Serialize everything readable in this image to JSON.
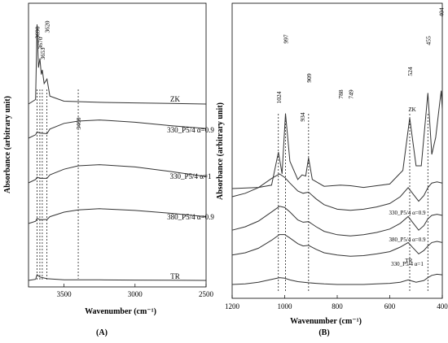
{
  "chart_data": [
    {
      "type": "line",
      "panel_label": "(A)",
      "xlabel": "Wavenumber (cm⁻¹)",
      "ylabel": "Absorbance (arbitrary unit)",
      "x_reversed": true,
      "xlim": [
        3750,
        2500
      ],
      "x_ticks": [
        "3500",
        "3000",
        "2500"
      ],
      "peak_labels": [
        "3690",
        "3670",
        "3653",
        "3620",
        "3400"
      ],
      "marker_lines": [
        3690,
        3670,
        3653,
        3620,
        3400
      ],
      "series": [
        {
          "name": "ZK",
          "x": [
            3750,
            3700,
            3690,
            3680,
            3670,
            3660,
            3653,
            3640,
            3620,
            3600,
            3500,
            3250,
            3000,
            2750,
            2500
          ],
          "y": [
            0.0,
            0.4,
            7.0,
            3.2,
            4.0,
            2.6,
            3.0,
            1.8,
            2.2,
            0.7,
            0.25,
            0.15,
            0.1,
            0.05,
            0.0
          ]
        },
        {
          "name": "330_P5/4 α=0.9",
          "x": [
            3750,
            3700,
            3690,
            3670,
            3620,
            3600,
            3500,
            3400,
            3250,
            3000,
            2750,
            2500
          ],
          "y": [
            0.0,
            0.3,
            0.55,
            0.45,
            0.4,
            0.8,
            1.3,
            1.5,
            1.6,
            1.4,
            1.1,
            0.85
          ]
        },
        {
          "name": "330_P5/4 α=1",
          "x": [
            3750,
            3700,
            3690,
            3670,
            3620,
            3600,
            3500,
            3400,
            3250,
            3000,
            2750,
            2500
          ],
          "y": [
            0.0,
            0.3,
            0.5,
            0.4,
            0.4,
            0.7,
            1.2,
            1.5,
            1.6,
            1.4,
            1.0,
            0.55
          ]
        },
        {
          "name": "380_P5/4 α=0.9",
          "x": [
            3750,
            3700,
            3690,
            3670,
            3620,
            3600,
            3500,
            3400,
            3250,
            3000,
            2750,
            2500
          ],
          "y": [
            0.0,
            0.2,
            0.45,
            0.35,
            0.35,
            0.6,
            1.0,
            1.2,
            1.3,
            1.15,
            0.9,
            0.6
          ]
        },
        {
          "name": "TR",
          "x": [
            3750,
            3700,
            3690,
            3670,
            3620,
            3500,
            3250,
            3000,
            2750,
            2500
          ],
          "y": [
            0.0,
            0.1,
            0.5,
            0.3,
            0.15,
            0.05,
            0.05,
            0.03,
            0.02,
            0.0
          ]
        }
      ]
    },
    {
      "type": "line",
      "panel_label": "(B)",
      "xlabel": "Wavenumber (cm⁻¹)",
      "ylabel": "Absorbance (arbitrary unit)",
      "x_reversed": true,
      "xlim": [
        1200,
        400
      ],
      "x_ticks": [
        "1200",
        "1000",
        "800",
        "600",
        "400"
      ],
      "peak_labels": [
        "1024",
        "997",
        "934",
        "909",
        "788",
        "749",
        "524",
        "455",
        "404"
      ],
      "marker_lines": [
        1024,
        997,
        909,
        524,
        455
      ],
      "series": [
        {
          "name": "ZK",
          "x": [
            1200,
            1100,
            1050,
            1024,
            1010,
            997,
            980,
            950,
            934,
            920,
            909,
            895,
            850,
            788,
            749,
            700,
            600,
            550,
            524,
            500,
            480,
            455,
            440,
            425,
            410,
            404,
            400
          ],
          "y": [
            0.0,
            0.1,
            0.3,
            3.2,
            1.3,
            6.6,
            2.4,
            0.8,
            1.2,
            1.1,
            2.7,
            0.8,
            0.2,
            0.3,
            0.25,
            0.1,
            0.4,
            1.6,
            6.2,
            2.0,
            2.0,
            8.4,
            3.0,
            4.5,
            7.5,
            8.6,
            7.0
          ]
        },
        {
          "name": "330_P5/4 α=0.9",
          "x": [
            1200,
            1150,
            1100,
            1050,
            1020,
            1000,
            980,
            950,
            930,
            909,
            880,
            850,
            800,
            750,
            700,
            650,
            600,
            560,
            530,
            510,
            490,
            470,
            455,
            440,
            420,
            400
          ],
          "y": [
            2.0,
            2.3,
            2.8,
            3.6,
            4.0,
            3.7,
            3.2,
            2.5,
            2.3,
            2.4,
            1.8,
            1.3,
            0.9,
            0.8,
            0.9,
            1.1,
            1.4,
            2.0,
            2.8,
            2.2,
            1.6,
            2.1,
            2.8,
            3.2,
            3.3,
            3.2
          ]
        },
        {
          "name": "380_P5/4 α=0.9",
          "x": [
            1200,
            1150,
            1100,
            1050,
            1020,
            1000,
            980,
            950,
            930,
            909,
            880,
            850,
            800,
            750,
            700,
            650,
            600,
            560,
            530,
            510,
            490,
            470,
            455,
            440,
            420,
            400
          ],
          "y": [
            1.2,
            1.5,
            2.0,
            2.8,
            3.3,
            3.2,
            2.8,
            2.1,
            1.9,
            1.95,
            1.5,
            1.1,
            0.8,
            0.7,
            0.8,
            1.0,
            1.3,
            1.8,
            2.4,
            1.8,
            1.2,
            1.6,
            2.2,
            2.5,
            2.6,
            2.5
          ]
        },
        {
          "name": "330_P5/4 α=1",
          "x": [
            1200,
            1150,
            1100,
            1050,
            1020,
            1000,
            980,
            950,
            930,
            909,
            880,
            850,
            800,
            750,
            700,
            650,
            600,
            560,
            530,
            510,
            490,
            470,
            455,
            440,
            420,
            400
          ],
          "y": [
            0.8,
            1.0,
            1.4,
            2.1,
            2.6,
            2.6,
            2.3,
            1.8,
            1.6,
            1.65,
            1.3,
            1.0,
            0.8,
            0.7,
            0.75,
            0.9,
            1.1,
            1.5,
            1.9,
            1.4,
            0.9,
            1.2,
            1.6,
            1.9,
            2.0,
            1.9
          ]
        },
        {
          "name": "TR",
          "x": [
            1200,
            1150,
            1100,
            1050,
            1020,
            1000,
            980,
            950,
            909,
            880,
            850,
            800,
            750,
            700,
            650,
            600,
            560,
            530,
            500,
            470,
            455,
            440,
            420,
            400
          ],
          "y": [
            0.0,
            0.05,
            0.2,
            0.45,
            0.6,
            0.55,
            0.4,
            0.25,
            0.15,
            0.1,
            0.05,
            0.0,
            0.0,
            0.0,
            0.05,
            0.1,
            0.2,
            0.4,
            0.2,
            0.35,
            0.6,
            0.8,
            0.9,
            0.85
          ]
        }
      ]
    }
  ]
}
